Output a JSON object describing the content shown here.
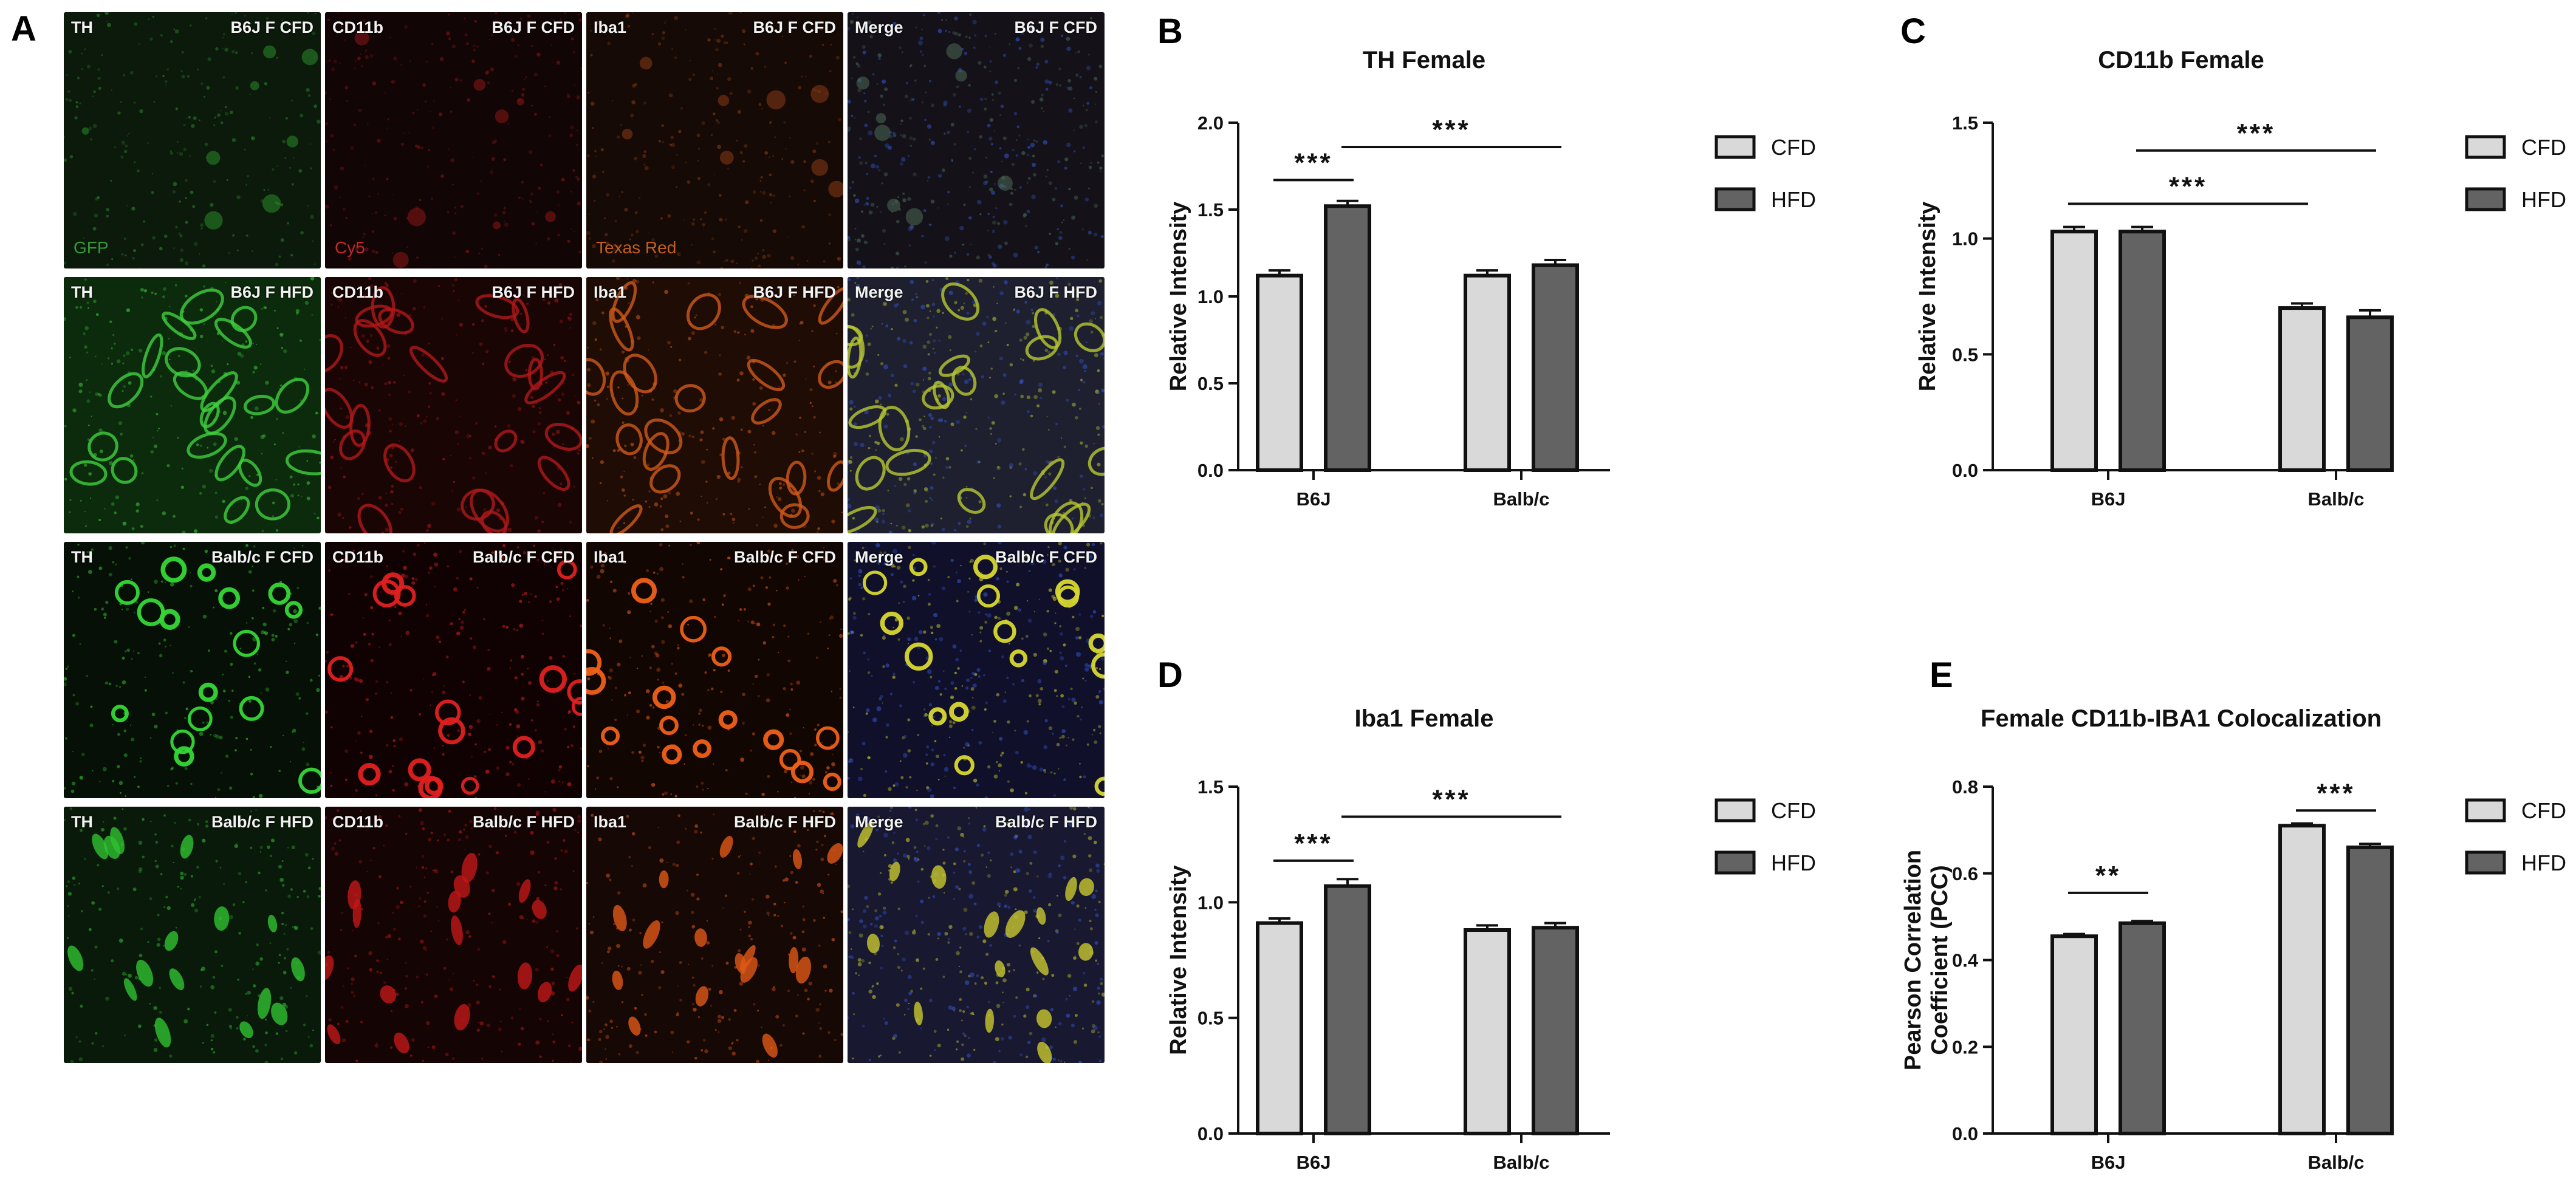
{
  "panels": {
    "A": "A",
    "B": "B",
    "C": "C",
    "D": "D",
    "E": "E"
  },
  "micrographs": {
    "rows": [
      {
        "bg": [
          "#0c1a0c",
          "#120505",
          "#150a05",
          "#141218"
        ],
        "cells": "faint",
        "tiles": [
          {
            "marker": "TH",
            "group": "B6J F CFD",
            "channel": "GFP",
            "channel_color": "#3cb043",
            "tint": "#2a8a2a"
          },
          {
            "marker": "CD11b",
            "group": "B6J F CFD",
            "channel": "Cy5",
            "channel_color": "#e03030",
            "tint": "#8a1515"
          },
          {
            "marker": "Iba1",
            "group": "B6J F CFD",
            "channel": "Texas Red",
            "channel_color": "#e07020",
            "tint": "#8a3a15"
          },
          {
            "marker": "Merge",
            "group": "B6J F CFD",
            "channel": "",
            "channel_color": "#ffffff",
            "tint": "#4a6a5a"
          }
        ]
      },
      {
        "bg": [
          "#0c2a0c",
          "#1a0505",
          "#1e0c05",
          "#1e2030"
        ],
        "cells": "tubular",
        "tiles": [
          {
            "marker": "TH",
            "group": "B6J F HFD",
            "channel": "",
            "channel_color": "#ffffff",
            "tint": "#3fd13f"
          },
          {
            "marker": "CD11b",
            "group": "B6J F HFD",
            "channel": "",
            "channel_color": "#ffffff",
            "tint": "#b01818"
          },
          {
            "marker": "Iba1",
            "group": "B6J F HFD",
            "channel": "",
            "channel_color": "#ffffff",
            "tint": "#d05a1a"
          },
          {
            "marker": "Merge",
            "group": "B6J F HFD",
            "channel": "",
            "channel_color": "#ffffff",
            "tint": "#b8c830"
          }
        ]
      },
      {
        "bg": [
          "#061006",
          "#100202",
          "#120602",
          "#10102a"
        ],
        "cells": "round",
        "tiles": [
          {
            "marker": "TH",
            "group": "Balb/c F CFD",
            "channel": "",
            "channel_color": "#ffffff",
            "tint": "#35d835"
          },
          {
            "marker": "CD11b",
            "group": "Balb/c F CFD",
            "channel": "",
            "channel_color": "#ffffff",
            "tint": "#e02020"
          },
          {
            "marker": "Iba1",
            "group": "Balb/c F CFD",
            "channel": "",
            "channel_color": "#ffffff",
            "tint": "#f06018"
          },
          {
            "marker": "Merge",
            "group": "Balb/c F CFD",
            "channel": "",
            "channel_color": "#ffffff",
            "tint": "#d8d830"
          }
        ]
      },
      {
        "bg": [
          "#0a1a0a",
          "#140404",
          "#160804",
          "#181830"
        ],
        "cells": "oblong",
        "tiles": [
          {
            "marker": "TH",
            "group": "Balb/c F HFD",
            "channel": "",
            "channel_color": "#ffffff",
            "tint": "#2fc02f"
          },
          {
            "marker": "CD11b",
            "group": "Balb/c F HFD",
            "channel": "",
            "channel_color": "#ffffff",
            "tint": "#c01818"
          },
          {
            "marker": "Iba1",
            "group": "Balb/c F HFD",
            "channel": "",
            "channel_color": "#ffffff",
            "tint": "#e05818"
          },
          {
            "marker": "Merge",
            "group": "Balb/c F HFD",
            "channel": "",
            "channel_color": "#ffffff",
            "tint": "#c8c830"
          }
        ]
      }
    ]
  },
  "legend": {
    "cfd": "CFD",
    "hfd": "HFD",
    "cfd_color": "#d9d9d9",
    "hfd_color": "#636363"
  },
  "chart_data": [
    {
      "id": "B",
      "type": "bar",
      "title": "TH Female",
      "ylabel": "Relative Intensity",
      "categories": [
        "B6J",
        "Balb/c"
      ],
      "ylim": [
        0,
        2.0
      ],
      "yticks": [
        "0.0",
        "0.5",
        "1.0",
        "1.5",
        "2.0"
      ],
      "series": [
        {
          "name": "CFD",
          "values": [
            1.12,
            1.12
          ],
          "errors": [
            0.03,
            0.03
          ]
        },
        {
          "name": "HFD",
          "values": [
            1.52,
            1.18
          ],
          "errors": [
            0.03,
            0.03
          ]
        }
      ],
      "annotations": [
        {
          "text": "***",
          "from": [
            0,
            0
          ],
          "to": [
            0,
            1
          ],
          "y": 1.67
        },
        {
          "text": "***",
          "from": [
            0,
            1
          ],
          "to": [
            1,
            1
          ],
          "y": 1.86
        }
      ]
    },
    {
      "id": "C",
      "type": "bar",
      "title": "CD11b Female",
      "ylabel": "Relative Intensity",
      "categories": [
        "B6J",
        "Balb/c"
      ],
      "ylim": [
        0,
        1.5
      ],
      "yticks": [
        "0.0",
        "0.5",
        "1.0",
        "1.5"
      ],
      "series": [
        {
          "name": "CFD",
          "values": [
            1.03,
            0.7
          ],
          "errors": [
            0.02,
            0.02
          ]
        },
        {
          "name": "HFD",
          "values": [
            1.03,
            0.66
          ],
          "errors": [
            0.02,
            0.03
          ]
        }
      ],
      "annotations": [
        {
          "text": "***",
          "from": [
            0,
            0
          ],
          "to": [
            1,
            0
          ],
          "y": 1.15
        },
        {
          "text": "***",
          "from": [
            0,
            1
          ],
          "to": [
            1,
            1
          ],
          "y": 1.38
        }
      ]
    },
    {
      "id": "D",
      "type": "bar",
      "title": "Iba1 Female",
      "ylabel": "Relative Intensity",
      "categories": [
        "B6J",
        "Balb/c"
      ],
      "ylim": [
        0,
        1.5
      ],
      "yticks": [
        "0.0",
        "0.5",
        "1.0",
        "1.5"
      ],
      "series": [
        {
          "name": "CFD",
          "values": [
            0.91,
            0.88
          ],
          "errors": [
            0.02,
            0.02
          ]
        },
        {
          "name": "HFD",
          "values": [
            1.07,
            0.89
          ],
          "errors": [
            0.03,
            0.02
          ]
        }
      ],
      "annotations": [
        {
          "text": "***",
          "from": [
            0,
            0
          ],
          "to": [
            0,
            1
          ],
          "y": 1.18
        },
        {
          "text": "***",
          "from": [
            0,
            1
          ],
          "to": [
            1,
            1
          ],
          "y": 1.37
        }
      ]
    },
    {
      "id": "E",
      "type": "bar",
      "title": "Female CD11b-IBA1 Colocalization",
      "ylabel": "Pearson Correlation Coefficient (PCC)",
      "ylabel_lines": [
        "Pearson Correlation",
        "Coefficient (PCC)"
      ],
      "categories": [
        "B6J",
        "Balb/c"
      ],
      "ylim": [
        0,
        0.8
      ],
      "yticks": [
        "0.0",
        "0.2",
        "0.4",
        "0.6",
        "0.8"
      ],
      "series": [
        {
          "name": "CFD",
          "values": [
            0.455,
            0.71
          ],
          "errors": [
            0.005,
            0.005
          ]
        },
        {
          "name": "HFD",
          "values": [
            0.485,
            0.66
          ],
          "errors": [
            0.005,
            0.008
          ]
        }
      ],
      "annotations": [
        {
          "text": "**",
          "from": [
            0,
            0
          ],
          "to": [
            0,
            1
          ],
          "y": 0.555
        },
        {
          "text": "***",
          "from": [
            1,
            0
          ],
          "to": [
            1,
            1
          ],
          "y": 0.745
        }
      ]
    }
  ]
}
